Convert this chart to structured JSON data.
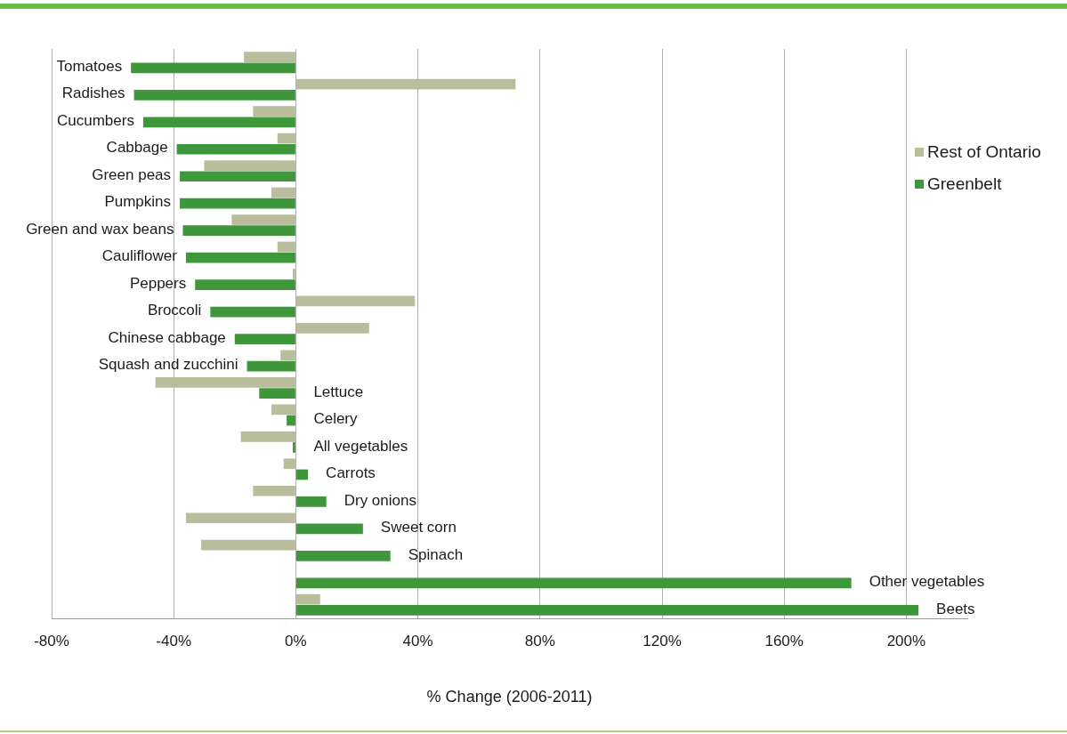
{
  "chart_data": {
    "type": "bar",
    "orientation": "horizontal",
    "categories": [
      "Tomatoes",
      "Radishes",
      "Cucumbers",
      "Cabbage",
      "Green peas",
      "Pumpkins",
      "Green and wax beans",
      "Cauliflower",
      "Peppers",
      "Broccoli",
      "Chinese cabbage",
      "Squash and zucchini",
      "Lettuce",
      "Celery",
      "All vegetables",
      "Carrots",
      "Dry onions",
      "Sweet corn",
      "Spinach",
      "Other vegetables",
      "Beets"
    ],
    "series": [
      {
        "name": "Rest of Ontario",
        "color": "#b9bd9c",
        "values": [
          -17,
          72,
          -14,
          -6,
          -30,
          -8,
          -21,
          -6,
          -1,
          39,
          24,
          -5,
          -46,
          -8,
          -18,
          -4,
          -14,
          -36,
          -31,
          null,
          8
        ]
      },
      {
        "name": "Greenbelt",
        "color": "#3f973b",
        "values": [
          -54,
          -53,
          -50,
          -39,
          -38,
          -38,
          -37,
          -36,
          -33,
          -28,
          -20,
          -16,
          -12,
          -3,
          -1,
          4,
          10,
          22,
          31,
          182,
          204
        ]
      }
    ],
    "xlabel": "% Change (2006-2011)",
    "xlim": [
      -80,
      220
    ],
    "xticks": [
      {
        "value": -80,
        "label": "-80%"
      },
      {
        "value": -40,
        "label": "-40%"
      },
      {
        "value": 0,
        "label": "0%"
      },
      {
        "value": 40,
        "label": "40%"
      },
      {
        "value": 80,
        "label": "80%"
      },
      {
        "value": 120,
        "label": "120%"
      },
      {
        "value": 160,
        "label": "160%"
      },
      {
        "value": 200,
        "label": "200%"
      }
    ],
    "grid": "x",
    "legend": "top right"
  }
}
